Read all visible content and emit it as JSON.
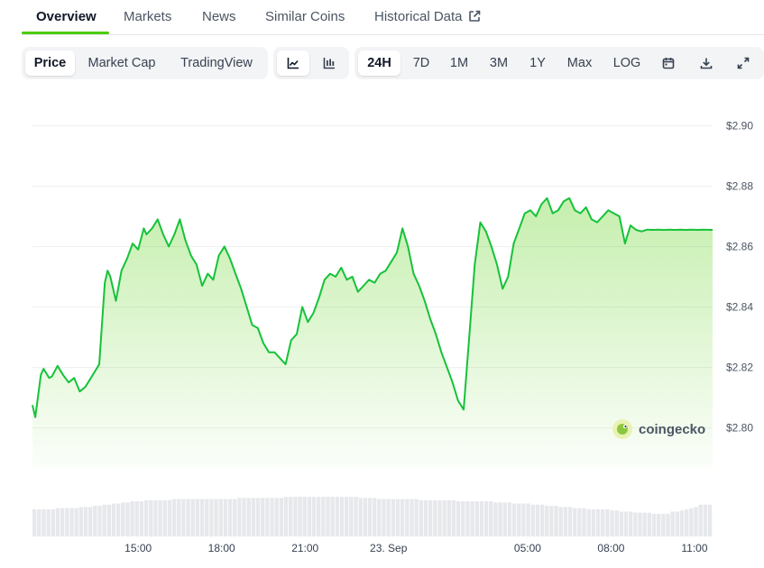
{
  "tabs": [
    {
      "label": "Overview",
      "active": true
    },
    {
      "label": "Markets",
      "active": false
    },
    {
      "label": "News",
      "active": false
    },
    {
      "label": "Similar Coins",
      "active": false
    },
    {
      "label": "Historical Data",
      "active": false,
      "icon": "external-link-icon"
    }
  ],
  "toolbar": {
    "metric": [
      "Price",
      "Market Cap",
      "TradingView"
    ],
    "metric_active": "Price",
    "chart_style_icons": [
      "line-chart-icon",
      "candlestick-chart-icon"
    ],
    "chart_style_active": "line-chart-icon",
    "ranges": [
      "24H",
      "7D",
      "1M",
      "3M",
      "1Y",
      "Max",
      "LOG"
    ],
    "range_active": "24H",
    "action_icons": [
      "calendar-icon",
      "download-icon",
      "fullscreen-icon"
    ]
  },
  "watermark": {
    "text": "coingecko",
    "icon": "coingecko-gecko-icon"
  },
  "colors": {
    "line": "#16c23a",
    "fill": "#4bcc00",
    "volume": "#d1d5db",
    "accent": "#4bcc00"
  },
  "chart_data": {
    "type": "line",
    "title": "",
    "xlabel": "",
    "ylabel": "",
    "ylim": [
      2.7864,
      2.9064
    ],
    "y_ticks": [
      2.8,
      2.82,
      2.84,
      2.86,
      2.88,
      2.9
    ],
    "y_tick_labels": [
      "$2.80",
      "$2.82",
      "$2.84",
      "$2.86",
      "$2.88",
      "$2.90"
    ],
    "x_tick_labels": [
      "15:00",
      "18:00",
      "21:00",
      "23. Sep",
      "05:00",
      "08:00",
      "11:00"
    ],
    "x_tick_hours": [
      15,
      18,
      21,
      24,
      29,
      32,
      35
    ],
    "x_range_hours": [
      11.2,
      35.65
    ],
    "grid": true,
    "legend": "none",
    "series": [
      {
        "x_hours": [
          11.2,
          11.3,
          11.5,
          11.6,
          11.8,
          11.9,
          12.1,
          12.3,
          12.5,
          12.7,
          12.9,
          13.1,
          13.3,
          13.6,
          13.8,
          13.9,
          14.0,
          14.2,
          14.4,
          14.6,
          14.8,
          15.0,
          15.2,
          15.3,
          15.5,
          15.7,
          15.9,
          16.1,
          16.3,
          16.5,
          16.7,
          16.9,
          17.1,
          17.3,
          17.5,
          17.7,
          17.9,
          18.1,
          18.3,
          18.5,
          18.7,
          18.9,
          19.1,
          19.3,
          19.5,
          19.7,
          19.9,
          20.1,
          20.3,
          20.5,
          20.7,
          20.9,
          21.1,
          21.3,
          21.5,
          21.7,
          21.9,
          22.1,
          22.3,
          22.5,
          22.7,
          22.9,
          23.1,
          23.3,
          23.5,
          23.7,
          23.9,
          24.1,
          24.3,
          24.5,
          24.7,
          24.9,
          25.1,
          25.3,
          25.5,
          25.7,
          25.9,
          26.1,
          26.3,
          26.5,
          26.7,
          26.9,
          27.1,
          27.3,
          27.5,
          27.7,
          27.9,
          28.1,
          28.3,
          28.5,
          28.7,
          28.9,
          29.1,
          29.3,
          29.5,
          29.7,
          29.9,
          30.1,
          30.3,
          30.5,
          30.7,
          30.9,
          31.1,
          31.3,
          31.5,
          31.7,
          31.9,
          32.1,
          32.3,
          32.5,
          32.7,
          32.9,
          33.1,
          33.3,
          33.5,
          33.7,
          33.9,
          34.1,
          34.3,
          34.5,
          34.7,
          34.9,
          35.1,
          35.3,
          35.65
        ],
        "values": [
          2.8075,
          2.8035,
          2.8175,
          2.8195,
          2.8165,
          2.817,
          2.8205,
          2.8175,
          2.815,
          2.8165,
          2.812,
          2.8135,
          2.8165,
          2.821,
          2.848,
          2.852,
          2.85,
          2.842,
          2.852,
          2.856,
          2.861,
          2.859,
          2.866,
          2.864,
          2.866,
          2.869,
          2.864,
          2.86,
          2.864,
          2.869,
          2.862,
          2.857,
          2.854,
          2.847,
          2.851,
          2.849,
          2.857,
          2.86,
          2.856,
          2.851,
          2.846,
          2.84,
          2.834,
          2.833,
          2.828,
          2.825,
          2.825,
          2.823,
          2.821,
          2.829,
          2.831,
          2.84,
          2.835,
          2.838,
          2.843,
          2.849,
          2.851,
          2.85,
          2.853,
          2.849,
          2.85,
          2.845,
          2.847,
          2.849,
          2.848,
          2.851,
          2.852,
          2.855,
          2.858,
          2.866,
          2.86,
          2.851,
          2.847,
          2.842,
          2.836,
          2.831,
          2.825,
          2.82,
          2.815,
          2.809,
          2.806,
          2.83,
          2.854,
          2.868,
          2.865,
          2.86,
          2.854,
          2.846,
          2.85,
          2.861,
          2.866,
          2.871,
          2.872,
          2.87,
          2.874,
          2.876,
          2.871,
          2.872,
          2.875,
          2.876,
          2.872,
          2.871,
          2.873,
          2.869,
          2.868,
          2.87,
          2.872,
          2.871,
          2.87,
          2.861,
          2.867,
          2.8655,
          2.865,
          2.8656,
          2.8655,
          2.8656,
          2.8655,
          2.8656,
          2.8655,
          2.8656,
          2.8655,
          2.8656,
          2.8655,
          2.8656,
          2.8655
        ]
      }
    ],
    "volume": {
      "x_range_hours": [
        11.2,
        35.65
      ],
      "values": [
        24,
        24,
        24,
        24,
        24,
        25,
        25,
        25,
        25,
        25,
        26,
        26,
        26,
        27,
        27,
        28,
        28,
        29,
        29,
        30,
        30,
        31,
        31,
        31,
        32,
        32,
        32,
        32,
        32,
        32,
        33,
        33,
        33,
        33,
        33,
        33,
        33,
        33,
        33,
        33,
        33,
        33,
        33,
        33,
        34,
        34,
        34,
        34,
        34,
        34,
        34,
        34,
        34,
        34,
        35,
        35,
        35,
        35,
        35,
        35,
        35,
        35,
        35,
        35,
        35,
        35,
        35,
        35,
        35,
        35,
        34,
        34,
        34,
        34,
        33,
        33,
        33,
        33,
        33,
        33,
        33,
        33,
        33,
        32,
        32,
        32,
        32,
        32,
        32,
        32,
        32,
        31,
        31,
        31,
        31,
        31,
        31,
        31,
        31,
        30,
        30,
        30,
        30,
        29,
        29,
        29,
        29,
        28,
        28,
        28,
        27,
        27,
        27,
        26,
        26,
        26,
        25,
        25,
        25,
        24,
        24,
        24,
        24,
        24,
        23,
        23,
        22,
        22,
        22,
        21,
        21,
        21,
        21,
        20,
        20,
        20,
        20,
        22,
        22,
        23,
        24,
        25,
        26,
        28,
        28,
        28
      ]
    }
  }
}
